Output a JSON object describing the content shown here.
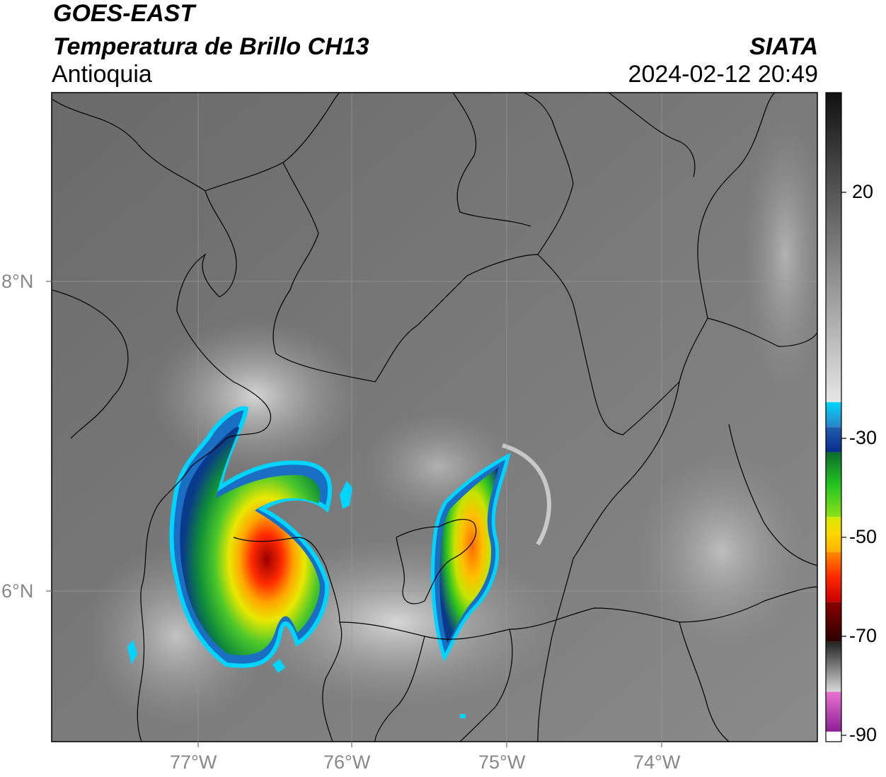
{
  "header": {
    "satellite": "GOES-EAST",
    "product": "Temperatura de Brillo CH13",
    "region": "Antioquia",
    "organization": "SIATA",
    "datetime": "2024-02-12 20:49"
  },
  "map": {
    "lon_ticks": [
      "77°W",
      "76°W",
      "75°W",
      "74°W"
    ],
    "lat_ticks": [
      "8°N",
      "6°N"
    ],
    "lon_range": [
      -77.95,
      -73.0
    ],
    "lat_range": [
      5.05,
      9.25
    ]
  },
  "colorbar": {
    "tick_labels": [
      "20",
      "-30",
      "-50",
      "-70",
      "-90"
    ],
    "range": [
      -90,
      40
    ],
    "segments": [
      {
        "from": 40,
        "to": -22,
        "colors": [
          "#111111",
          "#e6e6e6"
        ]
      },
      {
        "from": -22,
        "to": -27,
        "colors": [
          "#00d5ff",
          "#2a84c6"
        ]
      },
      {
        "from": -27,
        "to": -32,
        "colors": [
          "#1f5fae",
          "#0a2a8a"
        ]
      },
      {
        "from": -32,
        "to": -45,
        "colors": [
          "#0b6b2f",
          "#22c41f",
          "#8ee21a"
        ]
      },
      {
        "from": -45,
        "to": -52,
        "colors": [
          "#d6ea00",
          "#ffd600",
          "#ffb000"
        ]
      },
      {
        "from": -52,
        "to": -62,
        "colors": [
          "#ff8a00",
          "#ff2a00",
          "#c80000"
        ]
      },
      {
        "from": -62,
        "to": -70,
        "colors": [
          "#8a0000",
          "#2a0000"
        ]
      },
      {
        "from": -70,
        "to": -80,
        "colors": [
          "#222222",
          "#d8d8d8"
        ]
      },
      {
        "from": -80,
        "to": -88,
        "colors": [
          "#e873d0",
          "#8c1f94"
        ]
      },
      {
        "from": -88,
        "to": -90,
        "colors": [
          "#ffffff"
        ]
      }
    ]
  }
}
